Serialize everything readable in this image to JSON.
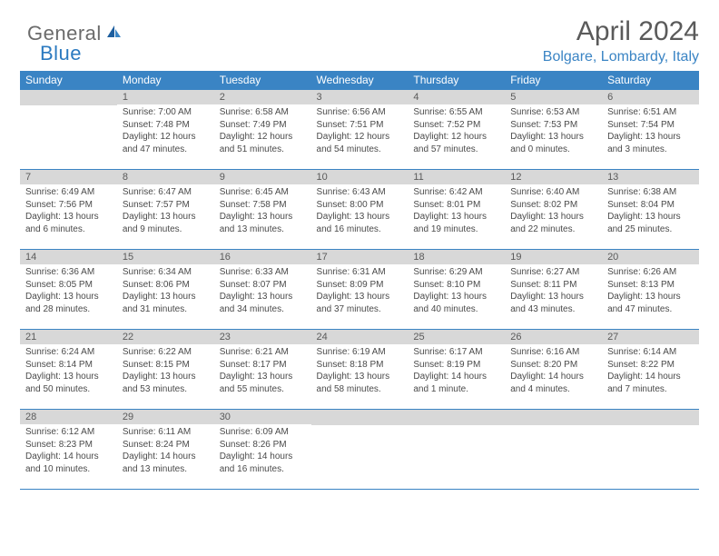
{
  "logo": {
    "text_gray": "General",
    "text_blue": "Blue"
  },
  "header": {
    "month_title": "April 2024",
    "location": "Bolgare, Lombardy, Italy"
  },
  "colors": {
    "header_blue": "#3a84c4",
    "daybar_gray": "#d8d8d8",
    "text_gray": "#5a5a5a",
    "body_text": "#4a4a4a",
    "location_blue": "#3a84c4"
  },
  "day_names": [
    "Sunday",
    "Monday",
    "Tuesday",
    "Wednesday",
    "Thursday",
    "Friday",
    "Saturday"
  ],
  "weeks": [
    [
      {
        "n": "",
        "sr": "",
        "ss": "",
        "dl": ""
      },
      {
        "n": "1",
        "sr": "Sunrise: 7:00 AM",
        "ss": "Sunset: 7:48 PM",
        "dl": "Daylight: 12 hours and 47 minutes."
      },
      {
        "n": "2",
        "sr": "Sunrise: 6:58 AM",
        "ss": "Sunset: 7:49 PM",
        "dl": "Daylight: 12 hours and 51 minutes."
      },
      {
        "n": "3",
        "sr": "Sunrise: 6:56 AM",
        "ss": "Sunset: 7:51 PM",
        "dl": "Daylight: 12 hours and 54 minutes."
      },
      {
        "n": "4",
        "sr": "Sunrise: 6:55 AM",
        "ss": "Sunset: 7:52 PM",
        "dl": "Daylight: 12 hours and 57 minutes."
      },
      {
        "n": "5",
        "sr": "Sunrise: 6:53 AM",
        "ss": "Sunset: 7:53 PM",
        "dl": "Daylight: 13 hours and 0 minutes."
      },
      {
        "n": "6",
        "sr": "Sunrise: 6:51 AM",
        "ss": "Sunset: 7:54 PM",
        "dl": "Daylight: 13 hours and 3 minutes."
      }
    ],
    [
      {
        "n": "7",
        "sr": "Sunrise: 6:49 AM",
        "ss": "Sunset: 7:56 PM",
        "dl": "Daylight: 13 hours and 6 minutes."
      },
      {
        "n": "8",
        "sr": "Sunrise: 6:47 AM",
        "ss": "Sunset: 7:57 PM",
        "dl": "Daylight: 13 hours and 9 minutes."
      },
      {
        "n": "9",
        "sr": "Sunrise: 6:45 AM",
        "ss": "Sunset: 7:58 PM",
        "dl": "Daylight: 13 hours and 13 minutes."
      },
      {
        "n": "10",
        "sr": "Sunrise: 6:43 AM",
        "ss": "Sunset: 8:00 PM",
        "dl": "Daylight: 13 hours and 16 minutes."
      },
      {
        "n": "11",
        "sr": "Sunrise: 6:42 AM",
        "ss": "Sunset: 8:01 PM",
        "dl": "Daylight: 13 hours and 19 minutes."
      },
      {
        "n": "12",
        "sr": "Sunrise: 6:40 AM",
        "ss": "Sunset: 8:02 PM",
        "dl": "Daylight: 13 hours and 22 minutes."
      },
      {
        "n": "13",
        "sr": "Sunrise: 6:38 AM",
        "ss": "Sunset: 8:04 PM",
        "dl": "Daylight: 13 hours and 25 minutes."
      }
    ],
    [
      {
        "n": "14",
        "sr": "Sunrise: 6:36 AM",
        "ss": "Sunset: 8:05 PM",
        "dl": "Daylight: 13 hours and 28 minutes."
      },
      {
        "n": "15",
        "sr": "Sunrise: 6:34 AM",
        "ss": "Sunset: 8:06 PM",
        "dl": "Daylight: 13 hours and 31 minutes."
      },
      {
        "n": "16",
        "sr": "Sunrise: 6:33 AM",
        "ss": "Sunset: 8:07 PM",
        "dl": "Daylight: 13 hours and 34 minutes."
      },
      {
        "n": "17",
        "sr": "Sunrise: 6:31 AM",
        "ss": "Sunset: 8:09 PM",
        "dl": "Daylight: 13 hours and 37 minutes."
      },
      {
        "n": "18",
        "sr": "Sunrise: 6:29 AM",
        "ss": "Sunset: 8:10 PM",
        "dl": "Daylight: 13 hours and 40 minutes."
      },
      {
        "n": "19",
        "sr": "Sunrise: 6:27 AM",
        "ss": "Sunset: 8:11 PM",
        "dl": "Daylight: 13 hours and 43 minutes."
      },
      {
        "n": "20",
        "sr": "Sunrise: 6:26 AM",
        "ss": "Sunset: 8:13 PM",
        "dl": "Daylight: 13 hours and 47 minutes."
      }
    ],
    [
      {
        "n": "21",
        "sr": "Sunrise: 6:24 AM",
        "ss": "Sunset: 8:14 PM",
        "dl": "Daylight: 13 hours and 50 minutes."
      },
      {
        "n": "22",
        "sr": "Sunrise: 6:22 AM",
        "ss": "Sunset: 8:15 PM",
        "dl": "Daylight: 13 hours and 53 minutes."
      },
      {
        "n": "23",
        "sr": "Sunrise: 6:21 AM",
        "ss": "Sunset: 8:17 PM",
        "dl": "Daylight: 13 hours and 55 minutes."
      },
      {
        "n": "24",
        "sr": "Sunrise: 6:19 AM",
        "ss": "Sunset: 8:18 PM",
        "dl": "Daylight: 13 hours and 58 minutes."
      },
      {
        "n": "25",
        "sr": "Sunrise: 6:17 AM",
        "ss": "Sunset: 8:19 PM",
        "dl": "Daylight: 14 hours and 1 minute."
      },
      {
        "n": "26",
        "sr": "Sunrise: 6:16 AM",
        "ss": "Sunset: 8:20 PM",
        "dl": "Daylight: 14 hours and 4 minutes."
      },
      {
        "n": "27",
        "sr": "Sunrise: 6:14 AM",
        "ss": "Sunset: 8:22 PM",
        "dl": "Daylight: 14 hours and 7 minutes."
      }
    ],
    [
      {
        "n": "28",
        "sr": "Sunrise: 6:12 AM",
        "ss": "Sunset: 8:23 PM",
        "dl": "Daylight: 14 hours and 10 minutes."
      },
      {
        "n": "29",
        "sr": "Sunrise: 6:11 AM",
        "ss": "Sunset: 8:24 PM",
        "dl": "Daylight: 14 hours and 13 minutes."
      },
      {
        "n": "30",
        "sr": "Sunrise: 6:09 AM",
        "ss": "Sunset: 8:26 PM",
        "dl": "Daylight: 14 hours and 16 minutes."
      },
      {
        "n": "",
        "sr": "",
        "ss": "",
        "dl": ""
      },
      {
        "n": "",
        "sr": "",
        "ss": "",
        "dl": ""
      },
      {
        "n": "",
        "sr": "",
        "ss": "",
        "dl": ""
      },
      {
        "n": "",
        "sr": "",
        "ss": "",
        "dl": ""
      }
    ]
  ]
}
